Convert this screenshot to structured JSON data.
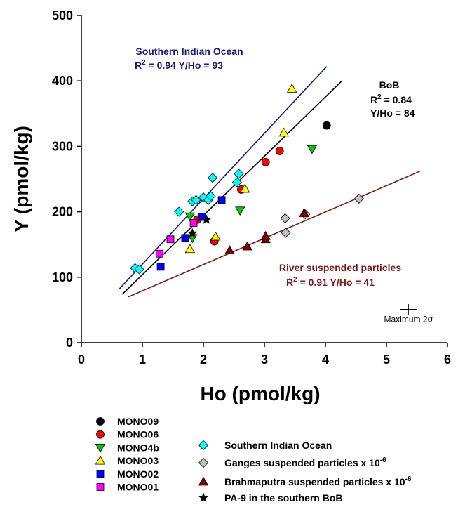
{
  "chart_data": {
    "type": "scatter",
    "xlabel": "Ho (pmol/kg)",
    "ylabel": "Y (pmol/kg)",
    "xlim": [
      0,
      6
    ],
    "ylim": [
      0,
      500
    ],
    "xticks": [
      "0",
      "1",
      "2",
      "3",
      "4",
      "5",
      "6"
    ],
    "yticks": [
      "0",
      "100",
      "200",
      "300",
      "400",
      "500"
    ],
    "grid": false,
    "series": [
      {
        "name": "MONO09",
        "marker": "circle",
        "color": "#000000",
        "points": [
          [
            4.02,
            332
          ]
        ]
      },
      {
        "name": "MONO06",
        "marker": "circle",
        "color": "#ff0000",
        "points": [
          [
            1.9,
            188
          ],
          [
            2.18,
            155
          ],
          [
            2.62,
            234
          ],
          [
            3.02,
            276
          ],
          [
            3.25,
            293
          ]
        ]
      },
      {
        "name": "MONO4b",
        "marker": "triangle-down",
        "color": "#00cc00",
        "points": [
          [
            1.78,
            193
          ],
          [
            1.82,
            160
          ],
          [
            2.6,
            202
          ],
          [
            3.78,
            296
          ]
        ]
      },
      {
        "name": "MONO03",
        "marker": "triangle-up",
        "color": "#ffff00",
        "points": [
          [
            1.78,
            143
          ],
          [
            2.2,
            162
          ],
          [
            2.68,
            235
          ],
          [
            3.32,
            321
          ],
          [
            3.45,
            388
          ]
        ]
      },
      {
        "name": "MONO02",
        "marker": "square",
        "color": "#0000ff",
        "points": [
          [
            1.3,
            116
          ],
          [
            1.7,
            160
          ],
          [
            1.98,
            192
          ],
          [
            2.3,
            218
          ]
        ]
      },
      {
        "name": "MONO01",
        "marker": "square",
        "color": "#ff00ff",
        "points": [
          [
            1.28,
            136
          ],
          [
            1.46,
            158
          ],
          [
            1.84,
            183
          ]
        ]
      },
      {
        "name": "Southern Indian Ocean",
        "marker": "diamond",
        "color": "#00ffff",
        "points": [
          [
            0.88,
            114
          ],
          [
            0.95,
            112
          ],
          [
            1.6,
            200
          ],
          [
            1.82,
            216
          ],
          [
            1.88,
            218
          ],
          [
            2.0,
            222
          ],
          [
            2.08,
            218
          ],
          [
            2.12,
            224
          ],
          [
            2.15,
            252
          ],
          [
            2.55,
            245
          ],
          [
            2.58,
            258
          ]
        ]
      },
      {
        "name": "Ganges suspended particles x 10⁻⁶",
        "marker": "diamond",
        "color": "#c0c0c0",
        "points": [
          [
            3.35,
            168
          ],
          [
            3.34,
            190
          ],
          [
            3.67,
            196
          ],
          [
            4.55,
            220
          ]
        ]
      },
      {
        "name": "Brahmaputra suspended particles x 10⁻⁶",
        "marker": "triangle-up",
        "color": "#800000",
        "points": [
          [
            2.43,
            141
          ],
          [
            2.72,
            147
          ],
          [
            3.02,
            158
          ],
          [
            3.02,
            163
          ],
          [
            3.65,
            198
          ]
        ]
      },
      {
        "name": "PA-9 in the southern BoB",
        "marker": "star",
        "color": "#000000",
        "points": [
          [
            1.82,
            167
          ],
          [
            2.05,
            188
          ]
        ]
      }
    ],
    "fits": [
      {
        "label": "Southern Indian Ocean",
        "r2": "R",
        "r2_sup": "2",
        "stats": " = 0.94    Y/Ho = 93",
        "color": "#1a1a80",
        "x": [
          0.62,
          4.02
        ],
        "y": [
          82,
          422
        ]
      },
      {
        "label": "BoB",
        "r2": "R",
        "r2_sup": "2",
        "stats": " = 0.84",
        "stats2": "Y/Ho = 84",
        "color": "#000000",
        "x": [
          0.67,
          4.27
        ],
        "y": [
          74,
          400
        ]
      },
      {
        "label": "River suspended particles",
        "r2": "R",
        "r2_sup": "2",
        "stats": " = 0.91    Y/Ho = 41",
        "color": "#7a1a1a",
        "x": [
          0.77,
          5.55
        ],
        "y": [
          70,
          262
        ]
      }
    ],
    "error_bar": {
      "label": "Maximum 2",
      "label_symbol": "σ",
      "x": 5.36,
      "y": 51,
      "dx": 0.14,
      "dy": 8
    }
  }
}
